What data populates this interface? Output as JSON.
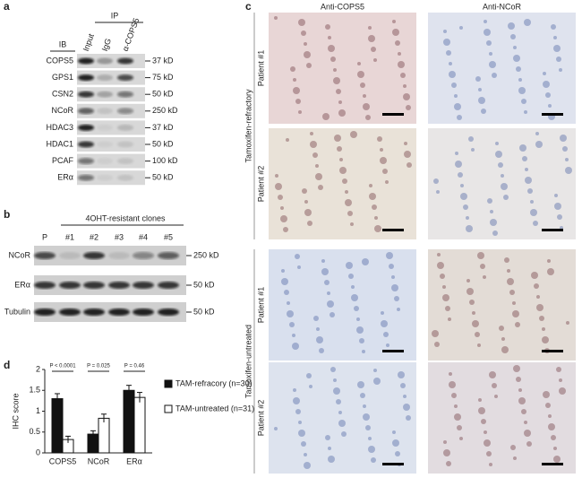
{
  "panels": {
    "a": {
      "label": "a",
      "ip_header": "IP",
      "ib_header": "IB",
      "lanes": [
        "Input",
        "IgG",
        "α-COPS5"
      ],
      "rows": [
        {
          "name": "COPS5",
          "marker": "37 kD"
        },
        {
          "name": "GPS1",
          "marker": "75 kD"
        },
        {
          "name": "CSN2",
          "marker": "50 kD"
        },
        {
          "name": "NCoR",
          "marker": "250 kD"
        },
        {
          "name": "HDAC3",
          "marker": "37 kD"
        },
        {
          "name": "HDAC1",
          "marker": "50 kD"
        },
        {
          "name": "PCAF",
          "marker": "100 kD"
        },
        {
          "name": "ERα",
          "marker": "50 kD"
        }
      ]
    },
    "b": {
      "label": "b",
      "group": "4OHT-resistant clones",
      "lanes": [
        "P",
        "#1",
        "#2",
        "#3",
        "#4",
        "#5"
      ],
      "rows": [
        {
          "name": "NCoR",
          "marker": "250 kD"
        },
        {
          "name": "ERα",
          "marker": "50 kD"
        },
        {
          "name": "Tubulin",
          "marker": "50 kD"
        }
      ]
    },
    "c": {
      "label": "c",
      "columns": [
        "Anti-COPS5",
        "Anti-NCoR"
      ],
      "groups": [
        {
          "name": "Tamoxifen-refractory",
          "patients": [
            "Patient #1",
            "Patient #2"
          ]
        },
        {
          "name": "Tamoxifen-untreated",
          "patients": [
            "Patient #1",
            "Patient #2"
          ]
        }
      ]
    },
    "d": {
      "label": "d",
      "chart_data": {
        "type": "bar",
        "ylabel": "IHC score",
        "categories": [
          "COPS5",
          "NCoR",
          "ERα"
        ],
        "ylim": [
          0,
          2
        ],
        "yticks": [
          0,
          0.5,
          1,
          1.5,
          2
        ],
        "p_values": [
          "P < 0.0001",
          "P = 0.025",
          "P = 0.46"
        ],
        "series": [
          {
            "name": "TAM-refracory (n=30)",
            "color": "#111111",
            "values": [
              1.3,
              0.45,
              1.5
            ],
            "errors": [
              0.12,
              0.08,
              0.12
            ]
          },
          {
            "name": "TAM-untreated (n=31)",
            "color": "#ffffff",
            "values": [
              0.32,
              0.83,
              1.33
            ],
            "errors": [
              0.08,
              0.1,
              0.12
            ]
          }
        ]
      }
    }
  }
}
